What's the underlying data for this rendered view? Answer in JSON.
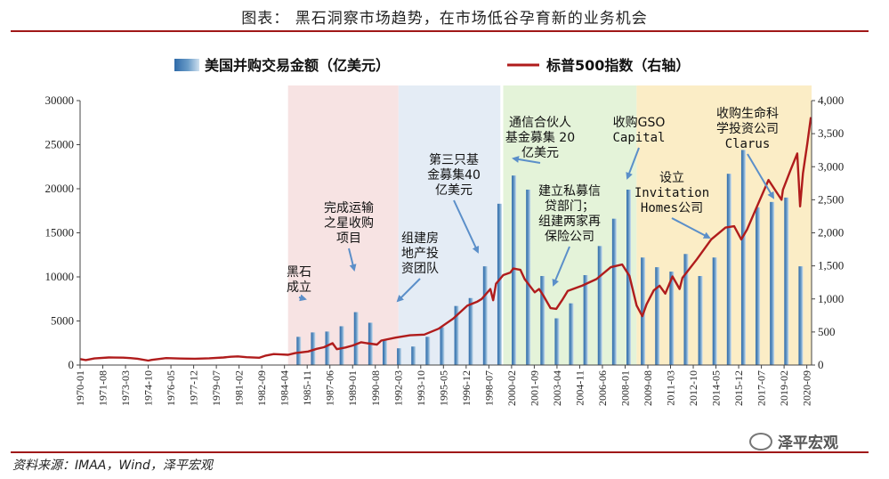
{
  "title": "图表：  黑石洞察市场趋势，在市场低谷孕育新的业务机会",
  "source": "资料来源：IMAA，Wind，泽平宏观",
  "watermark": "泽平宏观",
  "colors": {
    "bar": "#6a9cc8",
    "line": "#b01c1c",
    "band_pink": "#f7e3e3",
    "band_blue": "#e4ecf5",
    "band_green": "#e4f3d9",
    "band_yellow": "#fbedc6",
    "arrow": "#5b8fc9",
    "rule": "#a01818"
  },
  "chart_data": {
    "type": "bar+line",
    "legend": [
      "美国并购交易金额（亿美元）",
      "标普500指数（右轴）"
    ],
    "legend_placement": "top",
    "y_left": {
      "lim": [
        0,
        30000
      ],
      "ticks": [
        "0",
        "5000",
        "10000",
        "15000",
        "20000",
        "25000",
        "30000"
      ]
    },
    "y_right": {
      "lim": [
        0,
        4000
      ],
      "ticks": [
        "0",
        "500",
        "1,000",
        "1,500",
        "2,000",
        "2,500",
        "3,000",
        "3,500",
        "4,000"
      ]
    },
    "x_range": [
      1970.0,
      2021.0
    ],
    "x_ticks": [
      "1970-01",
      "1971-08",
      "1973-03",
      "1974-10",
      "1976-05",
      "1977-12",
      "1979-07",
      "1981-02",
      "1982-09",
      "1984-04",
      "1985-11",
      "1987-06",
      "1989-01",
      "1990-08",
      "1992-03",
      "1993-10",
      "1995-05",
      "1996-12",
      "1998-07",
      "2000-02",
      "2001-09",
      "2003-04",
      "2004-11",
      "2006-06",
      "2008-01",
      "2009-08",
      "2011-03",
      "2012-10",
      "2014-05",
      "2015-12",
      "2017-07",
      "2019-02",
      "2020-09"
    ],
    "bars": {
      "name": "美国并购交易金额（亿美元）",
      "years": [
        1985,
        1986,
        1987,
        1988,
        1989,
        1990,
        1991,
        1992,
        1993,
        1994,
        1995,
        1996,
        1997,
        1998,
        1999,
        2000,
        2001,
        2002,
        2003,
        2004,
        2005,
        2006,
        2007,
        2008,
        2009,
        2010,
        2011,
        2012,
        2013,
        2014,
        2015,
        2016,
        2017,
        2018,
        2019,
        2020
      ],
      "values": [
        3200,
        3700,
        3800,
        4400,
        6000,
        4800,
        2900,
        1900,
        2100,
        3200,
        4300,
        6700,
        7600,
        11200,
        18300,
        21500,
        19900,
        10100,
        5300,
        7000,
        10200,
        13500,
        16600,
        19900,
        12200,
        11100,
        10600,
        12600,
        10100,
        12200,
        21700,
        24400,
        17900,
        18500,
        19000,
        11200
      ]
    },
    "line": {
      "name": "标普500指数（右轴）",
      "x": [
        1970.0,
        1970.4,
        1971.0,
        1972.0,
        1973.0,
        1973.5,
        1974.0,
        1974.75,
        1975.0,
        1976.0,
        1977.0,
        1978.0,
        1979.0,
        1980.0,
        1980.5,
        1981.0,
        1981.6,
        1982.5,
        1982.9,
        1983.5,
        1984.0,
        1984.5,
        1985.0,
        1985.9,
        1986.5,
        1987.0,
        1987.6,
        1987.9,
        1988.5,
        1989.0,
        1989.6,
        1990.0,
        1990.7,
        1991.0,
        1992.0,
        1993.0,
        1994.0,
        1995.0,
        1996.0,
        1997.0,
        1997.7,
        1998.0,
        1998.6,
        1998.8,
        1999.0,
        1999.5,
        2000.0,
        2000.2,
        2000.7,
        2001.0,
        2001.7,
        2002.0,
        2002.3,
        2002.8,
        2003.2,
        2003.6,
        2004.0,
        2005.0,
        2006.0,
        2007.0,
        2007.8,
        2008.3,
        2008.8,
        2009.2,
        2009.5,
        2010.0,
        2010.4,
        2010.8,
        2011.3,
        2011.8,
        2012.0,
        2013.0,
        2014.0,
        2015.0,
        2015.6,
        2016.1,
        2016.5,
        2017.0,
        2018.0,
        2018.9,
        2019.0,
        2019.5,
        2020.0,
        2020.2,
        2020.4,
        2020.7,
        2020.95
      ],
      "y": [
        90,
        75,
        100,
        115,
        112,
        105,
        95,
        68,
        78,
        105,
        98,
        96,
        102,
        115,
        125,
        130,
        118,
        110,
        140,
        165,
        160,
        155,
        180,
        205,
        245,
        270,
        330,
        240,
        265,
        295,
        345,
        330,
        310,
        370,
        415,
        450,
        460,
        550,
        700,
        900,
        960,
        1000,
        1150,
        980,
        1230,
        1360,
        1400,
        1460,
        1440,
        1300,
        1100,
        1150,
        1050,
        860,
        850,
        980,
        1120,
        1200,
        1300,
        1480,
        1520,
        1350,
        900,
        740,
        920,
        1130,
        1200,
        1080,
        1340,
        1150,
        1320,
        1600,
        1900,
        2080,
        2100,
        1900,
        2050,
        2300,
        2800,
        2500,
        2650,
        2930,
        3200,
        2400,
        2900,
        3350,
        3750
      ]
    },
    "periods": [
      {
        "x0": 1984.5,
        "x1": 1992.2,
        "fill": "band_pink"
      },
      {
        "x0": 1992.2,
        "x1": 1999.3,
        "fill": "band_blue"
      },
      {
        "x0": 1999.5,
        "x1": 2008.8,
        "fill": "band_green"
      },
      {
        "x0": 2008.8,
        "x1": 2021.0,
        "fill": "band_yellow"
      }
    ],
    "annotations": [
      {
        "lines": [
          "黑石",
          "成立"
        ],
        "target_x": 1985.8,
        "target_v": 3600
      },
      {
        "lines": [
          "完成运输",
          "之星收购",
          "项目"
        ],
        "target_x": 1989.0,
        "target_v": 7800
      },
      {
        "lines": [
          "组建房",
          "地产投",
          "资团队"
        ],
        "target_x": 1991.9,
        "target_v": 4200
      },
      {
        "lines": [
          "第三只基",
          "金募集40",
          "亿美元"
        ],
        "target_x": 1997.6,
        "target_v": 12300
      },
      {
        "lines": [
          "通信合伙人",
          "基金募集 20",
          "亿美元"
        ],
        "target_x": 2000.2,
        "target_v": 22000
      },
      {
        "lines": [
          "建立私募信",
          "贷部门；",
          "组建两家再",
          "保险公司"
        ],
        "target_x": 2003.1,
        "target_v": 8500
      },
      {
        "lines": [
          "收购GSO",
          "Capital"
        ],
        "target_x": 2007.8,
        "target_v": 20800
      },
      {
        "lines": [
          "设立",
          "Invitation",
          "Homes公司"
        ],
        "target_x": 2013.5,
        "target_v": 14000
      },
      {
        "lines": [
          "收购生命科",
          "学投资公司",
          "Clarus"
        ],
        "target_x": 2018.0,
        "target_v": 19200
      }
    ]
  }
}
